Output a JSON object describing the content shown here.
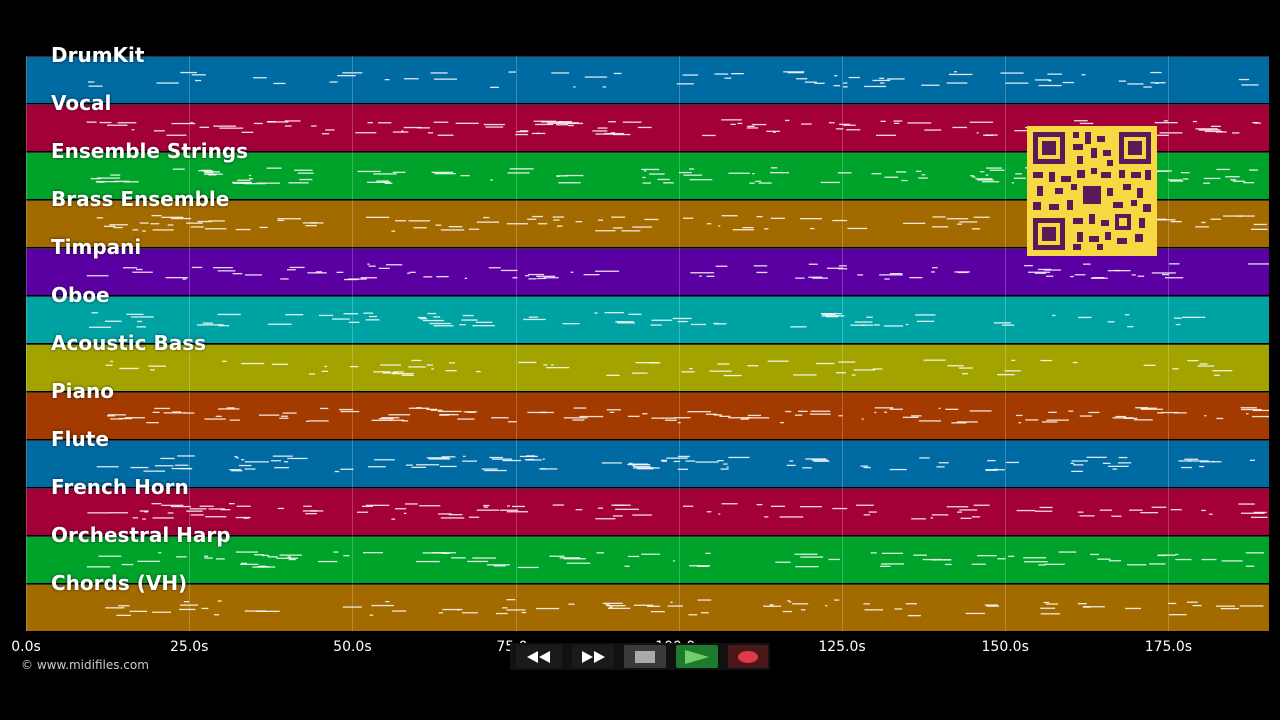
{
  "tracks": [
    {
      "name": "DrumKit",
      "color": "#006aa3"
    },
    {
      "name": "Vocal",
      "color": "#a3003a"
    },
    {
      "name": "Ensemble Strings",
      "color": "#00a32a"
    },
    {
      "name": "Brass Ensemble",
      "color": "#a36a00"
    },
    {
      "name": "Timpani",
      "color": "#5a00a3"
    },
    {
      "name": "Oboe",
      "color": "#00a3a3"
    },
    {
      "name": "Acoustic Bass",
      "color": "#a3a300"
    },
    {
      "name": "Piano",
      "color": "#a33a00"
    },
    {
      "name": "Flute",
      "color": "#006aa3"
    },
    {
      "name": "French Horn",
      "color": "#a3003a"
    },
    {
      "name": "Orchestral Harp",
      "color": "#00a32a"
    },
    {
      "name": "Chords (VH)",
      "color": "#a36a00"
    }
  ],
  "timeline": {
    "ticks": [
      "0.0s",
      "25.0s",
      "50.0s",
      "75.0s",
      "100.0s",
      "125.0s",
      "150.0s",
      "175.0s"
    ],
    "tick_seconds": [
      0,
      25,
      50,
      75,
      100,
      125,
      150,
      175
    ]
  },
  "copyright": "© www.midifiles.com",
  "controls": {
    "icons": [
      "rewind-icon",
      "fast-forward-icon",
      "stop-icon",
      "play-icon",
      "record-icon"
    ]
  }
}
